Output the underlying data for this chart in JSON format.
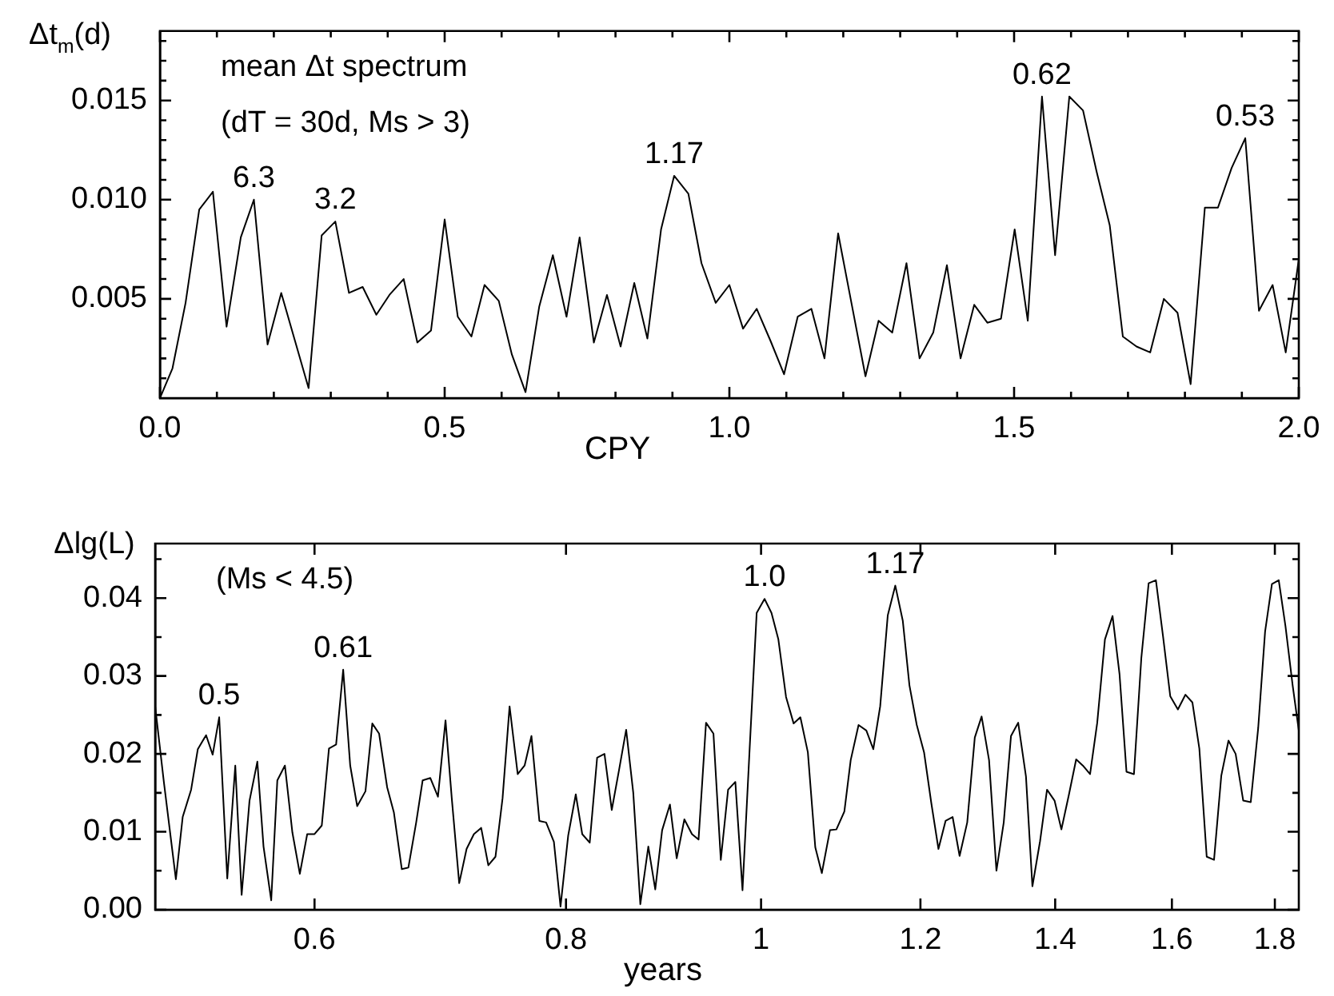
{
  "chart_data": [
    {
      "type": "line",
      "xlabel": "CPY",
      "ylabel": "Δt$_{m}$(d)",
      "annotations": [
        "mean Δt spectrum",
        "(dT = 30d, Ms > 3)",
        {
          "text": "6.3",
          "x": 0.165,
          "y": 0.01
        },
        {
          "text": "3.2",
          "x": 0.308,
          "y": 0.0089
        },
        {
          "text": "1.17",
          "x": 0.903,
          "y": 0.0112
        },
        {
          "text": "0.62",
          "x": 1.549,
          "y": 0.0152
        },
        {
          "text": "0.53",
          "x": 1.906,
          "y": 0.0131
        }
      ],
      "x": [
        0.0,
        0.022,
        0.045,
        0.069,
        0.093,
        0.117,
        0.142,
        0.165,
        0.189,
        0.213,
        0.237,
        0.261,
        0.284,
        0.308,
        0.332,
        0.356,
        0.38,
        0.403,
        0.428,
        0.452,
        0.476,
        0.5,
        0.523,
        0.547,
        0.57,
        0.595,
        0.618,
        0.642,
        0.666,
        0.69,
        0.714,
        0.737,
        0.762,
        0.785,
        0.809,
        0.833,
        0.856,
        0.88,
        0.903,
        0.928,
        0.951,
        0.976,
        1.0,
        1.024,
        1.048,
        1.072,
        1.096,
        1.12,
        1.144,
        1.167,
        1.191,
        1.215,
        1.239,
        1.262,
        1.286,
        1.311,
        1.334,
        1.358,
        1.382,
        1.406,
        1.43,
        1.453,
        1.477,
        1.501,
        1.524,
        1.549,
        1.572,
        1.597,
        1.621,
        1.645,
        1.668,
        1.691,
        1.715,
        1.739,
        1.763,
        1.787,
        1.81,
        1.835,
        1.858,
        1.882,
        1.906,
        1.93,
        1.954,
        1.977,
        2.0
      ],
      "series": [
        {
          "color": "#000000",
          "values": [
            0.0,
            0.0015,
            0.0048,
            0.0095,
            0.0104,
            0.0036,
            0.0081,
            0.01,
            0.0027,
            0.0053,
            0.0029,
            0.0005,
            0.0082,
            0.0089,
            0.0053,
            0.0056,
            0.0042,
            0.0052,
            0.006,
            0.0028,
            0.0034,
            0.009,
            0.0041,
            0.0031,
            0.0057,
            0.0049,
            0.0022,
            0.0003,
            0.0046,
            0.0072,
            0.0041,
            0.0081,
            0.0028,
            0.0052,
            0.0026,
            0.0058,
            0.003,
            0.0085,
            0.0112,
            0.0103,
            0.0068,
            0.0048,
            0.0057,
            0.0035,
            0.0045,
            0.0029,
            0.0012,
            0.0041,
            0.0045,
            0.002,
            0.0083,
            0.0047,
            0.0011,
            0.0039,
            0.0033,
            0.0068,
            0.002,
            0.0033,
            0.0067,
            0.002,
            0.0047,
            0.0038,
            0.004,
            0.0085,
            0.0039,
            0.0152,
            0.0072,
            0.0152,
            0.0145,
            0.0114,
            0.0087,
            0.0031,
            0.0026,
            0.0023,
            0.005,
            0.0043,
            0.0007,
            0.0096,
            0.0096,
            0.0116,
            0.0131,
            0.0044,
            0.0057,
            0.0023,
            0.007
          ]
        }
      ],
      "xlim": [
        0,
        2
      ],
      "ylim": [
        0,
        0.0185
      ],
      "xticks": [
        {
          "value": 0,
          "label": "0.0"
        },
        {
          "value": 0.1,
          "label": null
        },
        {
          "value": 0.2,
          "label": null
        },
        {
          "value": 0.3,
          "label": null
        },
        {
          "value": 0.4,
          "label": null
        },
        0.5,
        {
          "value": 0.6,
          "label": null
        },
        {
          "value": 0.7,
          "label": null
        },
        {
          "value": 0.8,
          "label": null
        },
        {
          "value": 0.9,
          "label": null
        },
        {
          "value": 1,
          "label": "1.0"
        },
        {
          "value": 1.1,
          "label": null
        },
        {
          "value": 1.2,
          "label": null
        },
        {
          "value": 1.3,
          "label": null
        },
        {
          "value": 1.4,
          "label": null
        },
        1.5,
        {
          "value": 1.6,
          "label": null
        },
        {
          "value": 1.7,
          "label": null
        },
        {
          "value": 1.8,
          "label": null
        },
        {
          "value": 1.9,
          "label": null
        },
        {
          "value": 2,
          "label": "2.0"
        }
      ],
      "yticks": [
        {
          "value": 0.001,
          "label": null
        },
        {
          "value": 0.002,
          "label": null
        },
        {
          "value": 0.003,
          "label": null
        },
        {
          "value": 0.004,
          "label": null
        },
        0.005,
        {
          "value": 0.006,
          "label": null
        },
        {
          "value": 0.007,
          "label": null
        },
        {
          "value": 0.008,
          "label": null
        },
        {
          "value": 0.009,
          "label": null
        },
        {
          "value": 0.01,
          "label": "0.010"
        },
        {
          "value": 0.011,
          "label": null
        },
        {
          "value": 0.012,
          "label": null
        },
        {
          "value": 0.013,
          "label": null
        },
        {
          "value": 0.014,
          "label": null
        },
        0.015,
        {
          "value": 0.016,
          "label": null
        },
        {
          "value": 0.017,
          "label": null
        },
        {
          "value": 0.018,
          "label": null
        }
      ],
      "grid": false,
      "legend": false,
      "marker": "none",
      "line_style": "solid"
    },
    {
      "type": "line",
      "xlabel": "years",
      "ylabel": "Δlg(L)",
      "log": "x",
      "annotations": [
        "(Ms < 4.5)",
        {
          "text": "0.5",
          "x": 0.538,
          "y": 0.0247
        },
        {
          "text": "0.61",
          "x": 0.62,
          "y": 0.0308
        },
        {
          "text": "1.0",
          "x": 1.004,
          "y": 0.0399
        },
        {
          "text": "1.17",
          "x": 1.166,
          "y": 0.0416
        }
      ],
      "x": [
        0.5,
        0.505,
        0.512,
        0.516,
        0.521,
        0.525,
        0.53,
        0.534,
        0.538,
        0.543,
        0.548,
        0.552,
        0.557,
        0.562,
        0.566,
        0.571,
        0.575,
        0.58,
        0.585,
        0.59,
        0.595,
        0.6,
        0.605,
        0.61,
        0.615,
        0.62,
        0.625,
        0.63,
        0.636,
        0.641,
        0.646,
        0.652,
        0.657,
        0.663,
        0.668,
        0.674,
        0.679,
        0.685,
        0.691,
        0.697,
        0.702,
        0.708,
        0.714,
        0.72,
        0.726,
        0.732,
        0.738,
        0.744,
        0.75,
        0.757,
        0.763,
        0.769,
        0.776,
        0.782,
        0.789,
        0.795,
        0.802,
        0.809,
        0.815,
        0.822,
        0.829,
        0.836,
        0.843,
        0.85,
        0.857,
        0.864,
        0.871,
        0.879,
        0.886,
        0.893,
        0.901,
        0.908,
        0.916,
        0.924,
        0.931,
        0.939,
        0.947,
        0.955,
        0.963,
        0.971,
        0.979,
        0.987,
        0.995,
        1.004,
        1.012,
        1.02,
        1.029,
        1.038,
        1.046,
        1.055,
        1.064,
        1.072,
        1.082,
        1.09,
        1.1,
        1.108,
        1.118,
        1.128,
        1.137,
        1.146,
        1.156,
        1.166,
        1.176,
        1.185,
        1.195,
        1.205,
        1.215,
        1.225,
        1.235,
        1.245,
        1.255,
        1.266,
        1.277,
        1.287,
        1.298,
        1.309,
        1.32,
        1.331,
        1.342,
        1.354,
        1.364,
        1.376,
        1.387,
        1.399,
        1.41,
        1.422,
        1.434,
        1.445,
        1.457,
        1.469,
        1.482,
        1.495,
        1.507,
        1.519,
        1.532,
        1.545,
        1.558,
        1.571,
        1.584,
        1.597,
        1.611,
        1.625,
        1.638,
        1.651,
        1.665,
        1.679,
        1.693,
        1.707,
        1.721,
        1.736,
        1.751,
        1.766,
        1.78,
        1.794,
        1.808,
        1.822,
        1.837,
        1.85
      ],
      "series": [
        {
          "color": "#000000",
          "values": [
            0.0261,
            0.0164,
            0.0039,
            0.0119,
            0.0154,
            0.0206,
            0.0224,
            0.0199,
            0.0247,
            0.004,
            0.0185,
            0.0019,
            0.014,
            0.019,
            0.0081,
            0.0012,
            0.0166,
            0.0185,
            0.0099,
            0.0046,
            0.0097,
            0.0097,
            0.0108,
            0.0207,
            0.0212,
            0.0308,
            0.0185,
            0.0133,
            0.0152,
            0.0239,
            0.0226,
            0.0157,
            0.0125,
            0.0052,
            0.0054,
            0.0112,
            0.0166,
            0.0169,
            0.0145,
            0.0243,
            0.0143,
            0.0034,
            0.0078,
            0.0097,
            0.0105,
            0.0057,
            0.0068,
            0.0143,
            0.0261,
            0.0174,
            0.0185,
            0.0223,
            0.0114,
            0.0112,
            0.0087,
            0.0004,
            0.0095,
            0.0148,
            0.0097,
            0.0086,
            0.0195,
            0.02,
            0.0128,
            0.0179,
            0.0231,
            0.015,
            0.0007,
            0.0081,
            0.0026,
            0.0102,
            0.0135,
            0.0066,
            0.0116,
            0.0097,
            0.009,
            0.024,
            0.0226,
            0.0064,
            0.0154,
            0.0164,
            0.0025,
            0.0206,
            0.0381,
            0.0399,
            0.0381,
            0.0347,
            0.0273,
            0.0239,
            0.0247,
            0.0202,
            0.008,
            0.0047,
            0.0102,
            0.0103,
            0.0126,
            0.0192,
            0.0237,
            0.023,
            0.0206,
            0.0261,
            0.0378,
            0.0416,
            0.0371,
            0.0288,
            0.0237,
            0.0202,
            0.0137,
            0.0078,
            0.0114,
            0.0119,
            0.0069,
            0.0112,
            0.0221,
            0.0248,
            0.0192,
            0.005,
            0.0112,
            0.0223,
            0.024,
            0.0171,
            0.003,
            0.0088,
            0.0154,
            0.014,
            0.0103,
            0.0147,
            0.0193,
            0.0185,
            0.0174,
            0.024,
            0.0347,
            0.0377,
            0.0302,
            0.0177,
            0.0174,
            0.0323,
            0.0419,
            0.0423,
            0.035,
            0.0274,
            0.0257,
            0.0276,
            0.0266,
            0.0207,
            0.0068,
            0.0064,
            0.0172,
            0.0217,
            0.02,
            0.014,
            0.0138,
            0.0233,
            0.0357,
            0.0418,
            0.0423,
            0.0364,
            0.0288,
            0.023
          ]
        }
      ],
      "xlim": [
        0.5,
        1.85
      ],
      "ylim": [
        0,
        0.047
      ],
      "xticks": [
        0.6,
        0.8,
        1,
        1.2,
        1.4,
        1.6,
        1.8
      ],
      "yticks": [
        {
          "value": 0,
          "label": "0.00"
        },
        {
          "value": 0.005,
          "label": null
        },
        0.01,
        {
          "value": 0.015,
          "label": null
        },
        0.02,
        {
          "value": 0.025,
          "label": null
        },
        0.03,
        {
          "value": 0.035,
          "label": null
        },
        0.04,
        {
          "value": 0.045,
          "label": null
        }
      ],
      "grid": false,
      "legend": false,
      "marker": "none",
      "line_style": "solid"
    }
  ]
}
